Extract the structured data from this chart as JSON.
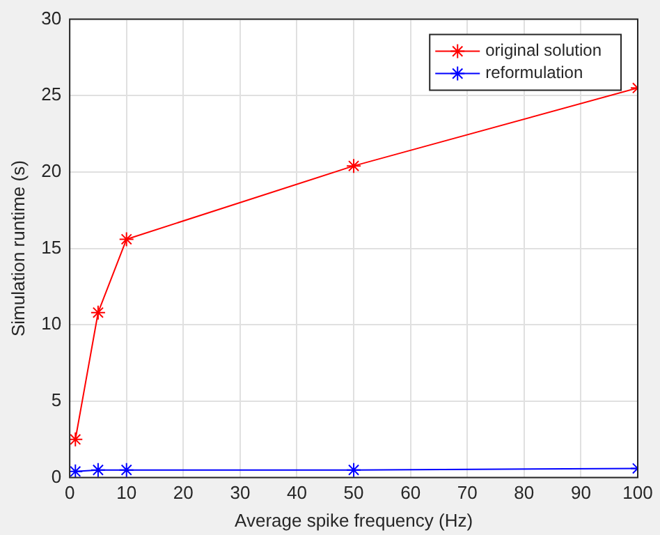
{
  "chart_data": {
    "type": "line",
    "xlabel": "Average spike frequency (Hz)",
    "ylabel": "Simulation runtime (s)",
    "x": [
      1,
      5,
      10,
      50,
      100
    ],
    "series": [
      {
        "name": "original solution",
        "color": "#ff0000",
        "values": [
          2.5,
          10.8,
          15.6,
          20.4,
          25.5
        ]
      },
      {
        "name": "reformulation",
        "color": "#0000ff",
        "values": [
          0.4,
          0.5,
          0.5,
          0.5,
          0.6
        ]
      }
    ],
    "xlim": [
      0,
      100
    ],
    "xticks": [
      0,
      10,
      20,
      30,
      40,
      50,
      60,
      70,
      80,
      90,
      100
    ],
    "ylim": [
      0,
      30
    ],
    "yticks": [
      0,
      5,
      10,
      15,
      20,
      25,
      30
    ],
    "grid": true,
    "legend": "top right",
    "marker": "cross",
    "line_style": "solid"
  }
}
